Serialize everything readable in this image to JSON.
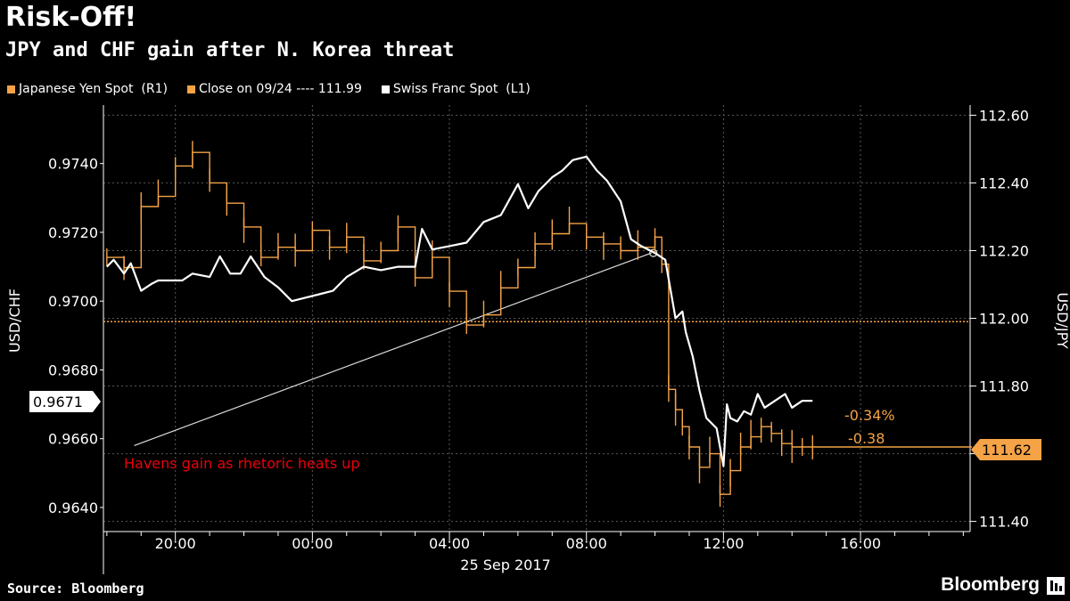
{
  "header": {
    "title": "Risk-Off!",
    "subtitle": "JPY and CHF gain after N. Korea threat"
  },
  "legend": {
    "jpy": "Japanese Yen Spot  (R1)",
    "close": "Close on 09/24 ---- 111.99",
    "chf": "Swiss Franc Spot  (L1)"
  },
  "footer": {
    "source": "Source: Bloomberg",
    "brand": "Bloomberg"
  },
  "colors": {
    "jpy": "#f5a347",
    "chf": "#ffffff",
    "annotation": "#e8000b",
    "grid": "#5a5a5a"
  },
  "chart_data": {
    "type": "line",
    "title": "Risk-Off!",
    "subtitle": "JPY and CHF gain after N. Korea threat",
    "xlabel": "25 Sep 2017",
    "ylabel_left": "USD/CHF",
    "ylabel_right": "USD/JPY",
    "x_ticks": [
      "20:00",
      "00:00",
      "04:00",
      "08:00",
      "12:00",
      "16:00"
    ],
    "x_tick_hours": [
      20,
      24,
      28,
      32,
      36,
      40
    ],
    "x_date_label": "25 Sep 2017",
    "x_range_hours": [
      17.9,
      43.2
    ],
    "left_axis": {
      "range": [
        0.9633,
        0.9757
      ],
      "ticks": [
        "0.9640",
        "0.9660",
        "0.9680",
        "0.9700",
        "0.9720",
        "0.9740"
      ],
      "tick_values": [
        0.964,
        0.966,
        0.968,
        0.97,
        0.972,
        0.974
      ]
    },
    "right_axis": {
      "range": [
        111.37,
        112.63
      ],
      "ticks": [
        "111.40",
        "111.60",
        "111.80",
        "112.00",
        "112.20",
        "112.40",
        "112.60"
      ],
      "tick_values": [
        111.4,
        111.6,
        111.8,
        112.0,
        112.2,
        112.4,
        112.6
      ]
    },
    "grid": true,
    "legend_position": "top",
    "reference_line": {
      "label": "Close on 09/24",
      "value": 111.99
    },
    "last_values": {
      "chf": "0.9671",
      "jpy": "111.62"
    },
    "annotations": {
      "pct": "-0.34%",
      "chg": "-0.38",
      "note": "Havens gain as rhetoric heats up"
    },
    "trend_line": {
      "start": [
        18.8,
        0.9658
      ],
      "end": [
        33.9,
        0.9714
      ]
    },
    "series": [
      {
        "name": "Swiss Franc Spot",
        "axis": "left",
        "x": [
          18.0,
          18.2,
          18.5,
          18.7,
          19.0,
          19.3,
          19.5,
          19.8,
          20.2,
          20.5,
          21.0,
          21.3,
          21.6,
          21.9,
          22.2,
          22.6,
          23.0,
          23.4,
          23.8,
          24.2,
          24.6,
          25.0,
          25.5,
          26.0,
          26.5,
          27.0,
          27.2,
          27.5,
          28.0,
          28.5,
          29.0,
          29.5,
          30.0,
          30.3,
          30.6,
          31.0,
          31.3,
          31.6,
          32.0,
          32.3,
          32.6,
          33.0,
          33.3,
          33.6,
          34.0,
          34.3,
          34.6,
          34.8,
          34.9,
          35.1,
          35.3,
          35.5,
          35.8,
          36.0,
          36.1,
          36.2,
          36.4,
          36.6,
          36.8,
          37.0,
          37.2,
          37.5,
          37.8,
          38.0,
          38.3,
          38.6
        ],
        "y": [
          0.971,
          0.9712,
          0.9708,
          0.9711,
          0.9703,
          0.9705,
          0.9706,
          0.9706,
          0.9706,
          0.9708,
          0.9707,
          0.9713,
          0.9708,
          0.9708,
          0.9713,
          0.9707,
          0.9704,
          0.97,
          0.9701,
          0.9702,
          0.9703,
          0.9707,
          0.971,
          0.9709,
          0.971,
          0.971,
          0.9721,
          0.9715,
          0.9716,
          0.9717,
          0.9723,
          0.9725,
          0.9734,
          0.9727,
          0.9732,
          0.9736,
          0.9738,
          0.9741,
          0.9742,
          0.9738,
          0.9735,
          0.9729,
          0.9718,
          0.9716,
          0.9714,
          0.9712,
          0.9695,
          0.9697,
          0.9691,
          0.9684,
          0.9674,
          0.9666,
          0.9663,
          0.9652,
          0.967,
          0.9666,
          0.9665,
          0.9668,
          0.9667,
          0.9673,
          0.9669,
          0.9671,
          0.9673,
          0.9669,
          0.9671,
          0.9671
        ]
      },
      {
        "name": "Japanese Yen Spot",
        "axis": "right",
        "x": [
          18.0,
          18.5,
          19.0,
          19.5,
          20.0,
          20.5,
          21.0,
          21.5,
          22.0,
          22.5,
          23.0,
          23.5,
          24.0,
          24.5,
          25.0,
          25.5,
          26.0,
          26.5,
          27.0,
          27.5,
          28.0,
          28.5,
          29.0,
          29.5,
          30.0,
          30.5,
          31.0,
          31.5,
          32.0,
          32.5,
          33.0,
          33.5,
          34.0,
          34.2,
          34.4,
          34.6,
          34.8,
          35.0,
          35.3,
          35.6,
          35.9,
          36.2,
          36.5,
          36.8,
          37.1,
          37.4,
          37.7,
          38.0,
          38.3,
          38.6
        ],
        "y": [
          112.18,
          112.15,
          112.33,
          112.36,
          112.45,
          112.49,
          112.4,
          112.34,
          112.27,
          112.18,
          112.21,
          112.2,
          112.26,
          112.21,
          112.24,
          112.17,
          112.2,
          112.27,
          112.12,
          112.18,
          112.08,
          111.98,
          112.01,
          112.09,
          112.15,
          112.22,
          112.25,
          112.28,
          112.24,
          112.22,
          112.2,
          112.21,
          112.24,
          112.16,
          111.79,
          111.73,
          111.68,
          111.62,
          111.56,
          111.6,
          111.48,
          111.55,
          111.62,
          111.65,
          111.68,
          111.66,
          111.63,
          111.62,
          111.62,
          111.62
        ]
      }
    ]
  }
}
